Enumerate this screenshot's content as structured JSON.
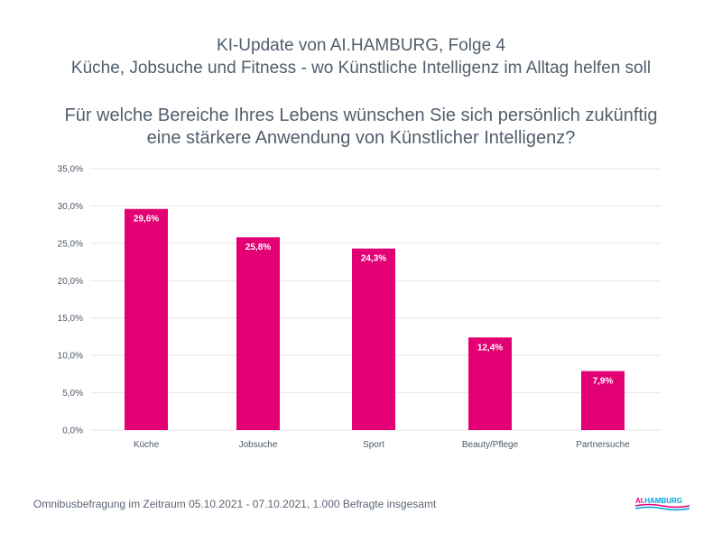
{
  "header": {
    "title_line1": "KI-Update von AI.HAMBURG, Folge 4",
    "title_line2": "Küche, Jobsuche und Fitness - wo Künstliche Intelligenz im Alltag helfen soll",
    "question_line1": "Für welche Bereiche Ihres Lebens wünschen Sie sich persönlich zukünftig",
    "question_line2": "eine stärkere Anwendung von Künstlicher Intelligenz?"
  },
  "chart_data": {
    "type": "bar",
    "title": "Für welche Bereiche Ihres Lebens wünschen Sie sich persönlich zukünftig eine stärkere Anwendung von Künstlicher Intelligenz?",
    "categories": [
      "Küche",
      "Jobsuche",
      "Sport",
      "Beauty/Pflege",
      "Partnersuche"
    ],
    "values": [
      29.6,
      25.8,
      24.3,
      12.4,
      7.9
    ],
    "value_labels": [
      "29,6%",
      "25,8%",
      "24,3%",
      "12,4%",
      "7,9%"
    ],
    "xlabel": "",
    "ylabel": "",
    "ylim": [
      0,
      35
    ],
    "yticks": [
      0,
      5,
      10,
      15,
      20,
      25,
      30,
      35
    ],
    "ytick_labels": [
      "0,0%",
      "5,0%",
      "10,0%",
      "15,0%",
      "20,0%",
      "25,0%",
      "30,0%",
      "35,0%"
    ],
    "grid": true,
    "legend": "none",
    "bar_color": "#e20074",
    "grid_color": "#e6e6e6"
  },
  "footer": {
    "note": "Omnibusbefragung im Zeitraum 05.10.2021 - 07.10.2021, 1.000 Befragte insgesamt"
  },
  "logo": {
    "text_ai": "AI.",
    "text_hamburg": "HAMBURG",
    "color_pink": "#e6007e",
    "color_blue": "#00a3e0"
  }
}
